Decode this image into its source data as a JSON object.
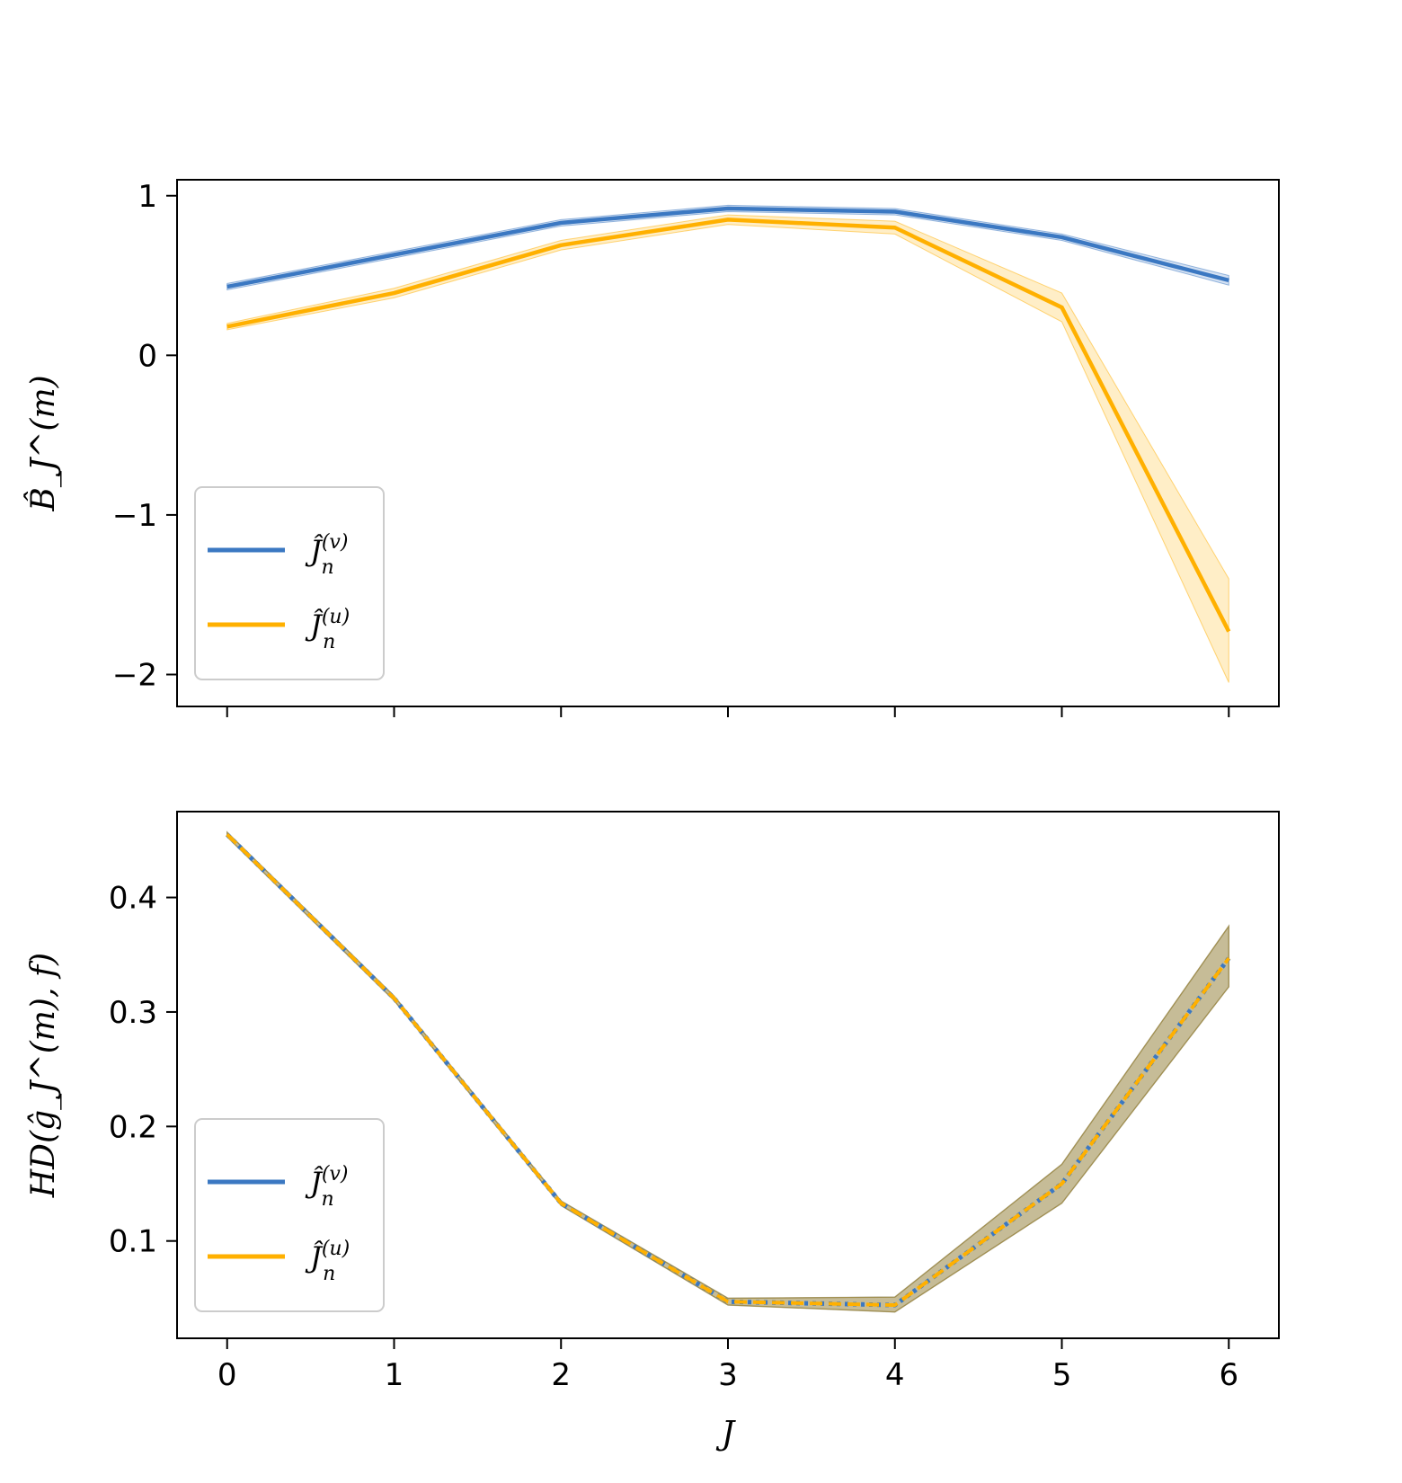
{
  "chart_data": [
    {
      "type": "line",
      "ylabel": "B̂_J^(m)",
      "xlim": [
        -0.3,
        6.3
      ],
      "ylim": [
        -2.2,
        1.1
      ],
      "xticks": [
        0,
        1,
        2,
        3,
        4,
        5,
        6
      ],
      "yticks": [
        1,
        0,
        -1,
        -2
      ],
      "ytick_labels": [
        "1",
        "0",
        "−1",
        "−2"
      ],
      "x_tick_labels_visible": false,
      "x": [
        0,
        1,
        2,
        3,
        4,
        5,
        6
      ],
      "series": [
        {
          "name": "Ĵn(v)",
          "color": "#3b78c2",
          "values": [
            0.43,
            0.63,
            0.83,
            0.92,
            0.9,
            0.74,
            0.47
          ],
          "lower": [
            0.41,
            0.61,
            0.81,
            0.9,
            0.88,
            0.72,
            0.44
          ],
          "upper": [
            0.45,
            0.65,
            0.85,
            0.94,
            0.92,
            0.76,
            0.5
          ]
        },
        {
          "name": "Ĵn(u)",
          "color": "#ffb000",
          "values": [
            0.18,
            0.39,
            0.69,
            0.85,
            0.8,
            0.3,
            -1.73
          ],
          "lower": [
            0.16,
            0.36,
            0.66,
            0.82,
            0.76,
            0.21,
            -2.05
          ],
          "upper": [
            0.2,
            0.42,
            0.72,
            0.88,
            0.84,
            0.39,
            -1.4
          ]
        }
      ],
      "legend": {
        "position": "lower-left",
        "entries": [
          {
            "base": "Ĵ",
            "sub": "n",
            "sup": "(v)"
          },
          {
            "base": "Ĵ",
            "sub": "n",
            "sup": "(u)"
          }
        ]
      }
    },
    {
      "type": "line",
      "ylabel": "HD(ĝ_J^(m), f)",
      "xlabel": "J",
      "xlim": [
        -0.3,
        6.3
      ],
      "ylim": [
        0.015,
        0.475
      ],
      "xticks": [
        0,
        1,
        2,
        3,
        4,
        5,
        6
      ],
      "xtick_labels": [
        "0",
        "1",
        "2",
        "3",
        "4",
        "5",
        "6"
      ],
      "yticks": [
        0.1,
        0.2,
        0.3,
        0.4
      ],
      "ytick_labels": [
        "0.1",
        "0.2",
        "0.3",
        "0.4"
      ],
      "x": [
        0,
        1,
        2,
        3,
        4,
        5,
        6
      ],
      "series": [
        {
          "name": "Ĵn(v)",
          "color": "#3b78c2",
          "style": "dotted",
          "values": [
            0.455,
            0.312,
            0.133,
            0.047,
            0.044,
            0.15,
            0.347
          ],
          "lower": [
            0.453,
            0.31,
            0.131,
            0.044,
            0.038,
            0.133,
            0.322
          ],
          "upper": [
            0.457,
            0.314,
            0.135,
            0.05,
            0.051,
            0.167,
            0.375
          ]
        },
        {
          "name": "Ĵn(u)",
          "color": "#ffb000",
          "style": "dashed",
          "values": [
            0.455,
            0.312,
            0.133,
            0.047,
            0.044,
            0.15,
            0.347
          ],
          "lower": [
            0.453,
            0.31,
            0.131,
            0.044,
            0.038,
            0.133,
            0.322
          ],
          "upper": [
            0.457,
            0.314,
            0.135,
            0.05,
            0.051,
            0.167,
            0.375
          ]
        }
      ],
      "legend": {
        "position": "lower-left",
        "entries": [
          {
            "base": "Ĵ",
            "sub": "n",
            "sup": "(v)"
          },
          {
            "base": "Ĵ",
            "sub": "n",
            "sup": "(u)"
          }
        ]
      }
    }
  ]
}
